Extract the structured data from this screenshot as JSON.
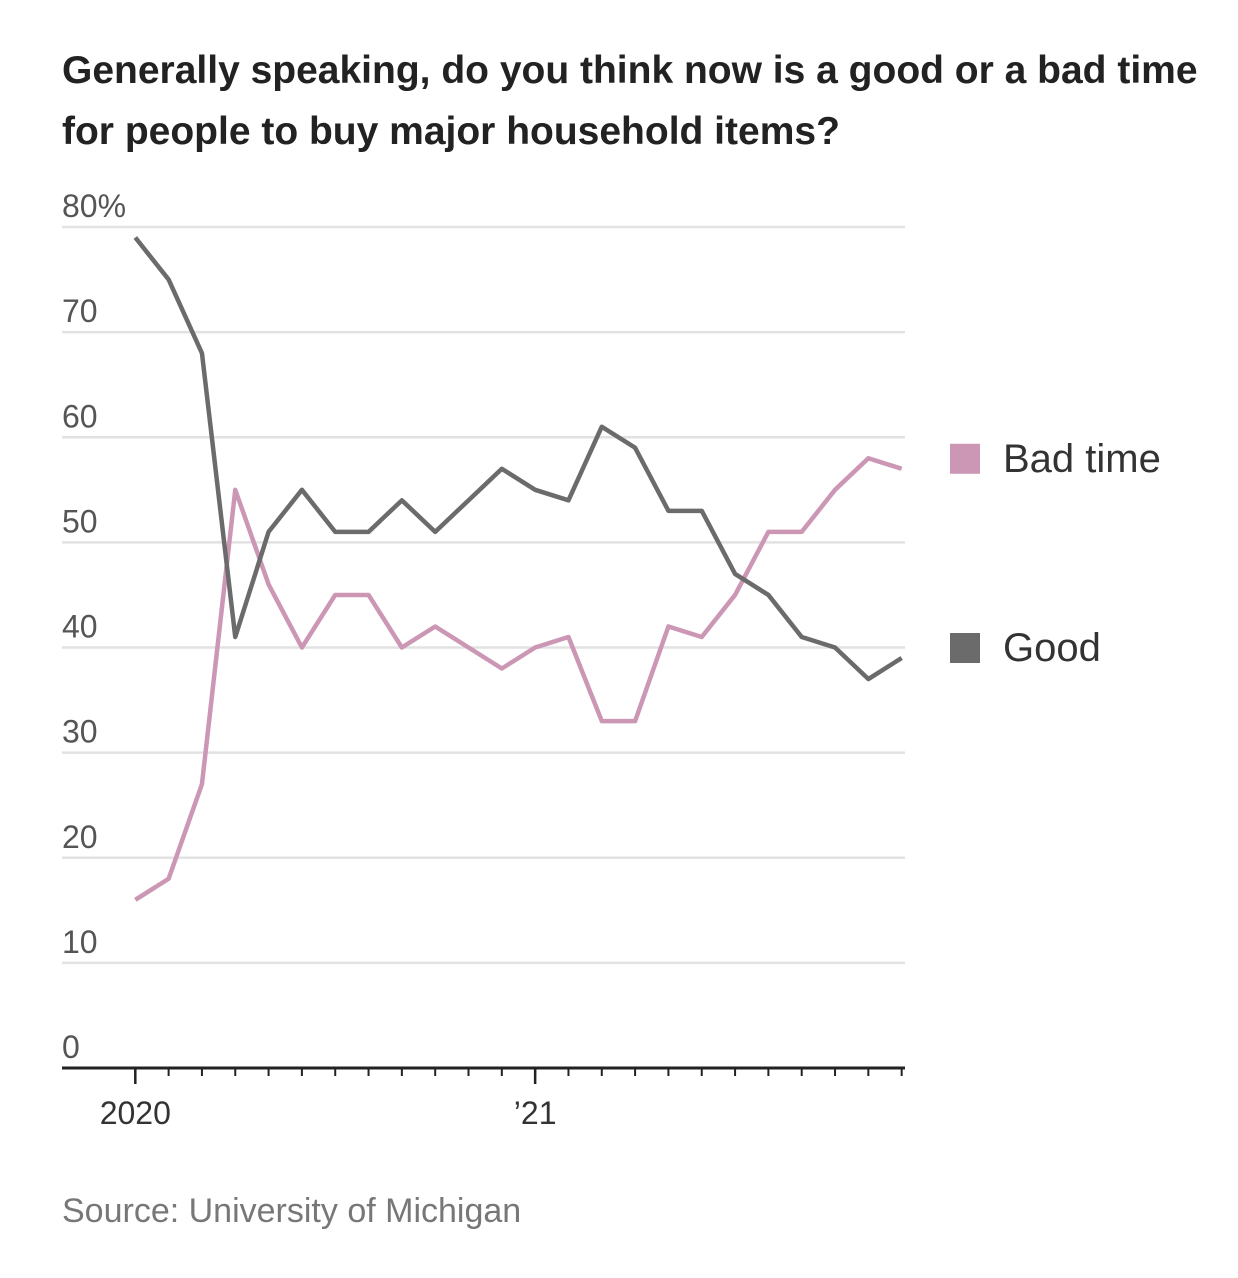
{
  "chart_data": {
    "type": "line",
    "title": "Generally speaking, do you think now is a good or a bad time for people to buy major household items?",
    "source": "Source: University of Michigan",
    "x": [
      0,
      1,
      2,
      3,
      4,
      5,
      6,
      7,
      8,
      9,
      10,
      11,
      12,
      13,
      14,
      15,
      16,
      17,
      18,
      19,
      20,
      21,
      22,
      23
    ],
    "xlim": [
      -2.2,
      23.1
    ],
    "xticks": [
      {
        "value": 0,
        "label": "2020"
      },
      {
        "value": 12,
        "label": "’21"
      }
    ],
    "ylim": [
      0,
      80
    ],
    "yticks": [
      0,
      10,
      20,
      30,
      40,
      50,
      60,
      70,
      {
        "value": 80,
        "label": "80%"
      }
    ],
    "grid": true,
    "legend": "right",
    "series": [
      {
        "name": "Bad time",
        "color": "#cc97b4",
        "values": [
          16,
          18,
          27,
          55,
          46,
          40,
          45,
          45,
          40,
          42,
          40,
          38,
          40,
          41,
          33,
          33,
          42,
          41,
          45,
          51,
          51,
          55,
          58,
          57
        ]
      },
      {
        "name": "Good",
        "color": "#6b6b6b",
        "values": [
          79,
          75,
          68,
          41,
          51,
          55,
          51,
          51,
          54,
          51,
          54,
          57,
          55,
          54,
          61,
          59,
          53,
          53,
          47,
          45,
          41,
          40,
          37,
          39
        ]
      }
    ]
  }
}
